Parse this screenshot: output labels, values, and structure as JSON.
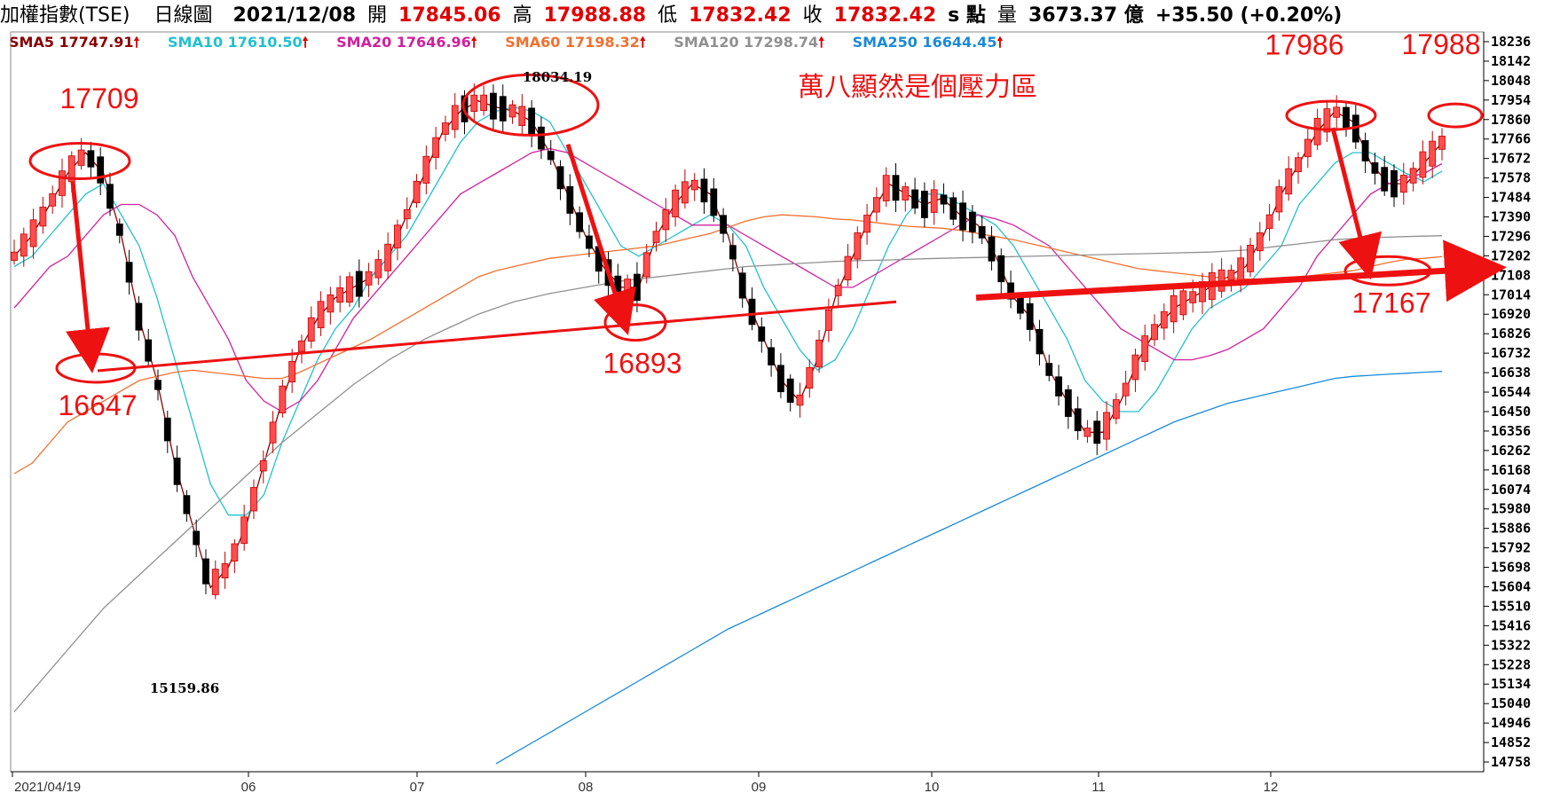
{
  "header": {
    "index_name": "加權指數(TSE)",
    "period_label": "日線圖",
    "date": "2021/12/08",
    "open_label": "開",
    "open": "17845.06",
    "high_label": "高",
    "high": "17988.88",
    "low_label": "低",
    "low": "17832.42",
    "close_label": "收",
    "close": "17832.42",
    "s_label": "s 點",
    "volume_label": "量",
    "volume": "3673.37 億",
    "change": "+35.50 (+0.20%)"
  },
  "legend": [
    {
      "label": "SMA5 17747.91",
      "color": "#8b0000"
    },
    {
      "label": "SMA10 17610.50",
      "color": "#22c0d0"
    },
    {
      "label": "SMA20 17646.96",
      "color": "#d020a0"
    },
    {
      "label": "SMA60 17198.32",
      "color": "#f07030"
    },
    {
      "label": "SMA120 17298.74",
      "color": "#909090"
    },
    {
      "label": "SMA250 16644.45",
      "color": "#1a8ad8"
    }
  ],
  "colors": {
    "up": "#ff4d4d",
    "down": "#000000",
    "annotation": "#ee1111",
    "grid": "#dddddd"
  },
  "chart_data": {
    "type": "line",
    "title": "",
    "xlabel": "",
    "ylabel": "",
    "ylim": [
      14711,
      18283
    ],
    "y_ticks": [
      18236,
      18142,
      18048,
      17954,
      17860,
      17766,
      17672,
      17578,
      17484,
      17390,
      17296,
      17202,
      17108,
      17014,
      16920,
      16826,
      16732,
      16638,
      16544,
      16450,
      16356,
      16262,
      16168,
      16074,
      15980,
      15886,
      15792,
      15698,
      15604,
      15510,
      15416,
      15322,
      15228,
      15134,
      15040,
      14946,
      14852,
      14758
    ],
    "x_ticks": [
      "2021/04/19",
      "06",
      "07",
      "08",
      "09",
      "10",
      "11",
      "12"
    ],
    "grid": false,
    "candlestick_extremes": [
      {
        "label": "18034.19",
        "value": 18034.19
      },
      {
        "label": "15159.86",
        "value": 15159.86
      }
    ],
    "annotations": [
      {
        "text": "17709",
        "value": 17709
      },
      {
        "text": "16647",
        "value": 16647
      },
      {
        "text": "16893",
        "value": 16893
      },
      {
        "text": "17986",
        "value": 17986
      },
      {
        "text": "17988",
        "value": 17988
      },
      {
        "text": "17167",
        "value": 17167
      },
      {
        "text": "萬八顯然是個壓力區"
      }
    ],
    "series": [
      {
        "name": "SMA5",
        "color": "#8b0000",
        "values": [
          17200,
          17300,
          17450,
          17600,
          17700,
          17600,
          17300,
          16900,
          16600,
          16200,
          15900,
          15600,
          15700,
          15900,
          16200,
          16500,
          16750,
          16900,
          17000,
          17050,
          17100,
          17200,
          17400,
          17600,
          17800,
          17900,
          17950,
          17920,
          17900,
          17850,
          17700,
          17500,
          17300,
          17150,
          17050,
          17050,
          17300,
          17450,
          17550,
          17500,
          17300,
          17000,
          16800,
          16600,
          16500,
          16700,
          17000,
          17200,
          17400,
          17550,
          17500,
          17450,
          17480,
          17400,
          17350,
          17200,
          17000,
          16900,
          16650,
          16500,
          16350,
          16350,
          16500,
          16700,
          16850,
          16950,
          17000,
          17050,
          17100,
          17150,
          17300,
          17500,
          17650,
          17800,
          17900,
          17850,
          17650,
          17550,
          17550,
          17650,
          17748
        ]
      },
      {
        "name": "SMA10",
        "color": "#22c0d0",
        "values": [
          17150,
          17200,
          17300,
          17400,
          17500,
          17550,
          17400,
          17250,
          17000,
          16700,
          16400,
          16100,
          15950,
          15950,
          16050,
          16300,
          16500,
          16700,
          16850,
          16950,
          17100,
          17200,
          17300,
          17450,
          17600,
          17750,
          17850,
          17900,
          17920,
          17900,
          17850,
          17700,
          17550,
          17400,
          17250,
          17200,
          17250,
          17300,
          17350,
          17400,
          17350,
          17250,
          17050,
          16900,
          16750,
          16650,
          16700,
          16850,
          17050,
          17250,
          17400,
          17500,
          17500,
          17450,
          17400,
          17350,
          17250,
          17100,
          16950,
          16800,
          16600,
          16500,
          16450,
          16450,
          16550,
          16700,
          16850,
          16950,
          17000,
          17050,
          17150,
          17250,
          17450,
          17550,
          17650,
          17700,
          17700,
          17650,
          17600,
          17560,
          17611
        ]
      },
      {
        "name": "SMA20",
        "color": "#d020a0",
        "values": [
          16950,
          17050,
          17150,
          17200,
          17300,
          17400,
          17450,
          17450,
          17400,
          17300,
          17100,
          16950,
          16800,
          16600,
          16500,
          16450,
          16500,
          16600,
          16750,
          16900,
          17000,
          17100,
          17200,
          17300,
          17400,
          17500,
          17550,
          17600,
          17650,
          17700,
          17720,
          17700,
          17650,
          17600,
          17550,
          17500,
          17450,
          17400,
          17350,
          17350,
          17350,
          17300,
          17250,
          17200,
          17150,
          17100,
          17050,
          17050,
          17100,
          17150,
          17200,
          17250,
          17300,
          17350,
          17400,
          17380,
          17350,
          17300,
          17250,
          17150,
          17050,
          16950,
          16850,
          16800,
          16750,
          16700,
          16700,
          16720,
          16750,
          16800,
          16850,
          16950,
          17050,
          17200,
          17300,
          17400,
          17500,
          17550,
          17580,
          17600,
          17647
        ]
      },
      {
        "name": "SMA60",
        "color": "#f07030",
        "values": [
          16150,
          16200,
          16300,
          16400,
          16450,
          16500,
          16550,
          16600,
          16620,
          16640,
          16650,
          16640,
          16630,
          16620,
          16610,
          16610,
          16640,
          16680,
          16720,
          16760,
          16800,
          16850,
          16900,
          16950,
          17000,
          17050,
          17100,
          17130,
          17150,
          17170,
          17190,
          17200,
          17210,
          17220,
          17230,
          17240,
          17250,
          17270,
          17290,
          17310,
          17340,
          17370,
          17390,
          17400,
          17395,
          17390,
          17380,
          17375,
          17365,
          17355,
          17345,
          17340,
          17335,
          17325,
          17310,
          17295,
          17280,
          17260,
          17240,
          17220,
          17200,
          17180,
          17160,
          17140,
          17130,
          17120,
          17110,
          17100,
          17095,
          17090,
          17090,
          17095,
          17100,
          17110,
          17120,
          17130,
          17150,
          17170,
          17185,
          17190,
          17198
        ]
      },
      {
        "name": "SMA120",
        "color": "#909090",
        "values": [
          15000,
          15100,
          15200,
          15300,
          15400,
          15500,
          15580,
          15660,
          15740,
          15820,
          15900,
          15980,
          16060,
          16140,
          16220,
          16300,
          16370,
          16440,
          16510,
          16580,
          16640,
          16700,
          16750,
          16800,
          16840,
          16880,
          16920,
          16950,
          16980,
          17000,
          17020,
          17035,
          17050,
          17065,
          17080,
          17090,
          17100,
          17110,
          17120,
          17130,
          17140,
          17150,
          17155,
          17160,
          17165,
          17170,
          17175,
          17178,
          17180,
          17182,
          17185,
          17188,
          17190,
          17192,
          17194,
          17196,
          17198,
          17200,
          17202,
          17204,
          17206,
          17208,
          17210,
          17212,
          17214,
          17216,
          17218,
          17220,
          17225,
          17230,
          17240,
          17250,
          17260,
          17270,
          17280,
          17285,
          17290,
          17292,
          17295,
          17297,
          17299
        ]
      },
      {
        "name": "SMA250",
        "color": "#1a8ad8",
        "values": [
          null,
          null,
          null,
          null,
          null,
          null,
          null,
          null,
          null,
          null,
          null,
          null,
          null,
          null,
          null,
          null,
          null,
          null,
          null,
          null,
          null,
          null,
          null,
          null,
          null,
          null,
          null,
          14750,
          14800,
          14850,
          14900,
          14950,
          15000,
          15050,
          15100,
          15150,
          15200,
          15250,
          15300,
          15350,
          15400,
          15440,
          15480,
          15520,
          15560,
          15600,
          15640,
          15680,
          15720,
          15760,
          15800,
          15840,
          15880,
          15920,
          15960,
          16000,
          16040,
          16080,
          16120,
          16160,
          16200,
          16240,
          16280,
          16320,
          16360,
          16400,
          16430,
          16460,
          16490,
          16510,
          16530,
          16550,
          16570,
          16590,
          16610,
          16620,
          16625,
          16630,
          16635,
          16640,
          16644
        ]
      }
    ]
  }
}
